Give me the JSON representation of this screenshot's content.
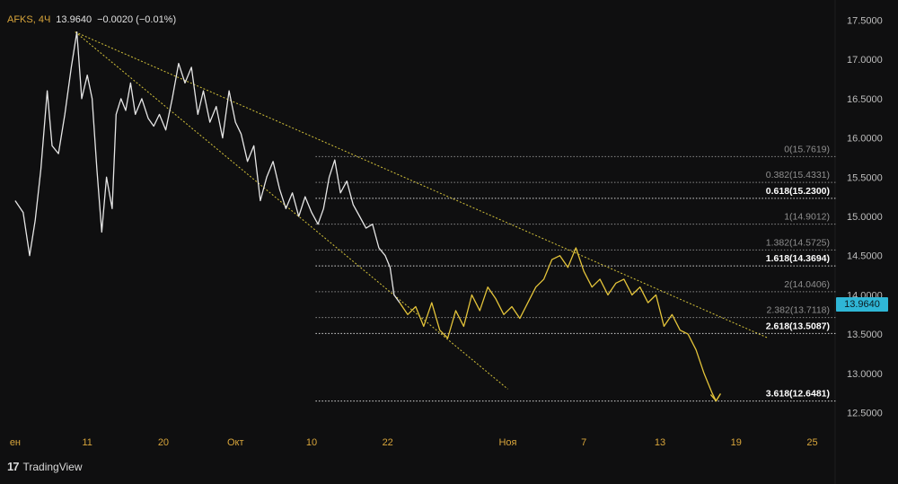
{
  "header": {
    "symbol": "AFKS, 4Ч",
    "price": "13.9640",
    "change": "−0.0020 (−0.01%)"
  },
  "brand": {
    "logo": "17",
    "name": "TradingView"
  },
  "price_tag": "13.9640",
  "chart_data": {
    "type": "line",
    "y_axis": {
      "range": [
        12.38,
        17.7
      ],
      "ticks": [
        "17.5000",
        "17.0000",
        "16.5000",
        "16.0000",
        "15.5000",
        "15.0000",
        "14.5000",
        "14.0000",
        "13.5000",
        "13.0000",
        "12.5000"
      ],
      "tick_values": [
        17.5,
        17.0,
        16.5,
        16.0,
        15.5,
        15.0,
        14.5,
        14.0,
        13.5,
        13.0,
        12.5
      ]
    },
    "x_axis": {
      "range": [
        0,
        100
      ],
      "ticks": [
        {
          "label": "ен",
          "x": 1
        },
        {
          "label": "11",
          "x": 10
        },
        {
          "label": "20",
          "x": 19.5
        },
        {
          "label": "Окт",
          "x": 28.5
        },
        {
          "label": "10",
          "x": 38
        },
        {
          "label": "22",
          "x": 47.5
        },
        {
          "label": "Ноя",
          "x": 62.5
        },
        {
          "label": "7",
          "x": 72
        },
        {
          "label": "13",
          "x": 81.5
        },
        {
          "label": "19",
          "x": 91
        },
        {
          "label": "25",
          "x": 100.5
        }
      ]
    },
    "colors": {
      "price": "#e6e6e6",
      "projection": "#e4c43a",
      "trend": "#d4c23a",
      "fib": "#aaaaaa",
      "fib_text": "#8f8f8f",
      "fib_text_bold": "#ffffff"
    },
    "series": [
      {
        "kind": "price",
        "points": [
          [
            1,
            15.2
          ],
          [
            2,
            15.05
          ],
          [
            2.8,
            14.5
          ],
          [
            3.5,
            14.95
          ],
          [
            4.2,
            15.6
          ],
          [
            5,
            16.6
          ],
          [
            5.6,
            15.9
          ],
          [
            6.4,
            15.8
          ],
          [
            7.2,
            16.3
          ],
          [
            8,
            16.9
          ],
          [
            8.7,
            17.35
          ],
          [
            9.3,
            16.5
          ],
          [
            10,
            16.8
          ],
          [
            10.6,
            16.5
          ],
          [
            11.2,
            15.6
          ],
          [
            11.8,
            14.8
          ],
          [
            12.4,
            15.5
          ],
          [
            13.1,
            15.1
          ],
          [
            13.6,
            16.3
          ],
          [
            14.2,
            16.5
          ],
          [
            14.8,
            16.35
          ],
          [
            15.4,
            16.7
          ],
          [
            16,
            16.3
          ],
          [
            16.8,
            16.5
          ],
          [
            17.6,
            16.25
          ],
          [
            18.3,
            16.15
          ],
          [
            19,
            16.3
          ],
          [
            19.8,
            16.1
          ],
          [
            20.6,
            16.5
          ],
          [
            21.4,
            16.95
          ],
          [
            22.2,
            16.7
          ],
          [
            23,
            16.9
          ],
          [
            23.8,
            16.3
          ],
          [
            24.5,
            16.6
          ],
          [
            25.3,
            16.2
          ],
          [
            26.1,
            16.4
          ],
          [
            26.9,
            16.0
          ],
          [
            27.7,
            16.6
          ],
          [
            28.5,
            16.2
          ],
          [
            29.2,
            16.05
          ],
          [
            30,
            15.7
          ],
          [
            30.8,
            15.9
          ],
          [
            31.6,
            15.2
          ],
          [
            32.4,
            15.5
          ],
          [
            33.2,
            15.7
          ],
          [
            34,
            15.35
          ],
          [
            34.8,
            15.1
          ],
          [
            35.6,
            15.3
          ],
          [
            36.4,
            15.0
          ],
          [
            37.2,
            15.25
          ],
          [
            38,
            15.05
          ],
          [
            38.8,
            14.9
          ],
          [
            39.5,
            15.1
          ],
          [
            40.2,
            15.5
          ],
          [
            40.9,
            15.72
          ],
          [
            41.6,
            15.3
          ],
          [
            42.4,
            15.45
          ],
          [
            43.2,
            15.15
          ],
          [
            44,
            15.0
          ],
          [
            44.8,
            14.85
          ],
          [
            45.6,
            14.9
          ],
          [
            46.4,
            14.6
          ],
          [
            47.2,
            14.5
          ],
          [
            47.8,
            14.35
          ],
          [
            48.3,
            14.0
          ],
          [
            49,
            13.9
          ]
        ]
      },
      {
        "kind": "projection",
        "points": [
          [
            49,
            13.9
          ],
          [
            50,
            13.75
          ],
          [
            51,
            13.85
          ],
          [
            52,
            13.6
          ],
          [
            53,
            13.9
          ],
          [
            54,
            13.55
          ],
          [
            55,
            13.45
          ],
          [
            56,
            13.8
          ],
          [
            57,
            13.6
          ],
          [
            58,
            14.0
          ],
          [
            59,
            13.8
          ],
          [
            60,
            14.1
          ],
          [
            61,
            13.95
          ],
          [
            62,
            13.75
          ],
          [
            63,
            13.85
          ],
          [
            64,
            13.7
          ],
          [
            65,
            13.9
          ],
          [
            66,
            14.1
          ],
          [
            67,
            14.2
          ],
          [
            68,
            14.45
          ],
          [
            69,
            14.5
          ],
          [
            70,
            14.35
          ],
          [
            71,
            14.6
          ],
          [
            72,
            14.3
          ],
          [
            73,
            14.1
          ],
          [
            74,
            14.2
          ],
          [
            75,
            14.0
          ],
          [
            76,
            14.15
          ],
          [
            77,
            14.2
          ],
          [
            78,
            14.0
          ],
          [
            79,
            14.1
          ],
          [
            80,
            13.9
          ],
          [
            81,
            14.0
          ],
          [
            82,
            13.6
          ],
          [
            83,
            13.75
          ],
          [
            84,
            13.55
          ],
          [
            85,
            13.5
          ],
          [
            86,
            13.3
          ],
          [
            87,
            13.0
          ],
          [
            88,
            12.75
          ],
          [
            88.5,
            12.65
          ]
        ]
      }
    ],
    "trendlines": [
      {
        "from": [
          8.5,
          17.35
        ],
        "to": [
          95,
          13.45
        ]
      },
      {
        "from": [
          8.5,
          17.35
        ],
        "to": [
          62.5,
          12.8
        ]
      }
    ],
    "fib_levels": [
      {
        "label": "0(15.7619)",
        "value": 15.7619,
        "bold": false
      },
      {
        "label": "0.382(15.4331)",
        "value": 15.4331,
        "bold": false
      },
      {
        "label": "0.618(15.2300)",
        "value": 15.23,
        "bold": true
      },
      {
        "label": "1(14.9012)",
        "value": 14.9012,
        "bold": false
      },
      {
        "label": "1.382(14.5725)",
        "value": 14.5725,
        "bold": false
      },
      {
        "label": "1.618(14.3694)",
        "value": 14.3694,
        "bold": true
      },
      {
        "label": "2(14.0406)",
        "value": 14.0406,
        "bold": false
      },
      {
        "label": "2.382(13.7118)",
        "value": 13.7118,
        "bold": false
      },
      {
        "label": "2.618(13.5087)",
        "value": 13.5087,
        "bold": true
      },
      {
        "label": "3.618(12.6481)",
        "value": 12.6481,
        "bold": true
      }
    ],
    "fib_range": [
      38.5,
      112.5
    ],
    "arrow_tip": [
      88.5,
      12.65
    ]
  }
}
